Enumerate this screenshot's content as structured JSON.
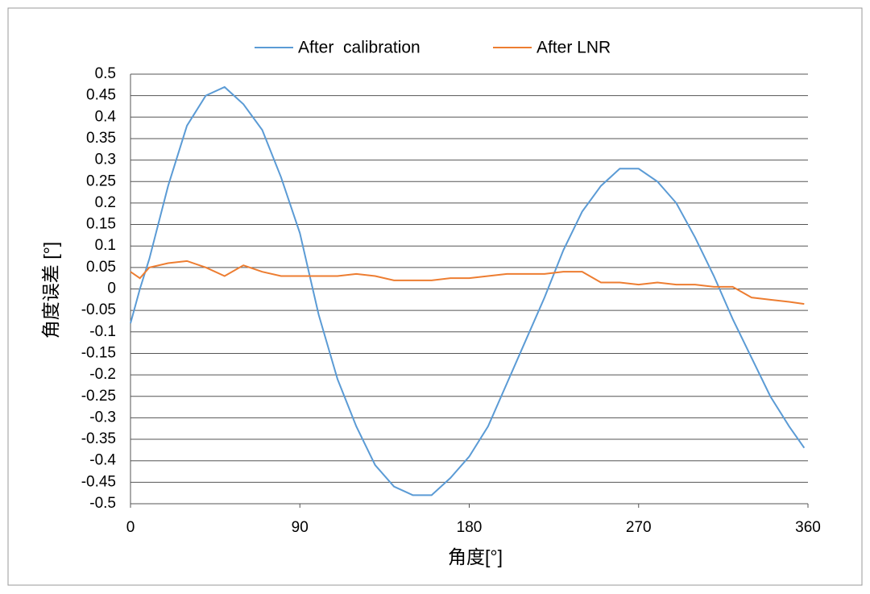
{
  "chart_data": {
    "type": "line",
    "xlabel": "角度[°]",
    "ylabel": "角度误差 [°]",
    "x": [
      0,
      5,
      10,
      20,
      30,
      40,
      50,
      60,
      70,
      80,
      90,
      100,
      110,
      120,
      130,
      140,
      150,
      160,
      170,
      180,
      190,
      200,
      210,
      220,
      230,
      240,
      250,
      260,
      270,
      280,
      290,
      300,
      310,
      320,
      330,
      340,
      350,
      358
    ],
    "series": [
      {
        "name": "After  calibration",
        "color": "#5b9bd5",
        "values": [
          -0.08,
          0.0,
          0.07,
          0.24,
          0.38,
          0.45,
          0.47,
          0.43,
          0.37,
          0.26,
          0.13,
          -0.06,
          -0.21,
          -0.32,
          -0.41,
          -0.46,
          -0.48,
          -0.48,
          -0.44,
          -0.39,
          -0.32,
          -0.22,
          -0.12,
          -0.02,
          0.09,
          0.18,
          0.24,
          0.28,
          0.28,
          0.25,
          0.2,
          0.12,
          0.03,
          -0.07,
          -0.16,
          -0.25,
          -0.32,
          -0.37
        ]
      },
      {
        "name": "After LNR",
        "color": "#ed7d31",
        "values": [
          0.04,
          0.025,
          0.05,
          0.06,
          0.065,
          0.05,
          0.03,
          0.055,
          0.04,
          0.03,
          0.03,
          0.03,
          0.03,
          0.035,
          0.03,
          0.02,
          0.02,
          0.02,
          0.025,
          0.025,
          0.03,
          0.035,
          0.035,
          0.035,
          0.04,
          0.04,
          0.015,
          0.015,
          0.01,
          0.015,
          0.01,
          0.01,
          0.005,
          0.005,
          -0.02,
          -0.025,
          -0.03,
          -0.035
        ]
      }
    ],
    "xlim": [
      0,
      360
    ],
    "xticks": [
      0,
      90,
      180,
      270,
      360
    ],
    "ylim": [
      -0.5,
      0.5
    ],
    "yticks": [
      -0.5,
      -0.45,
      -0.4,
      -0.35,
      -0.3,
      -0.25,
      -0.2,
      -0.15,
      -0.1,
      -0.05,
      0,
      0.05,
      0.1,
      0.15,
      0.2,
      0.25,
      0.3,
      0.35,
      0.4,
      0.45,
      0.5
    ],
    "grid": true,
    "legend": "top"
  }
}
